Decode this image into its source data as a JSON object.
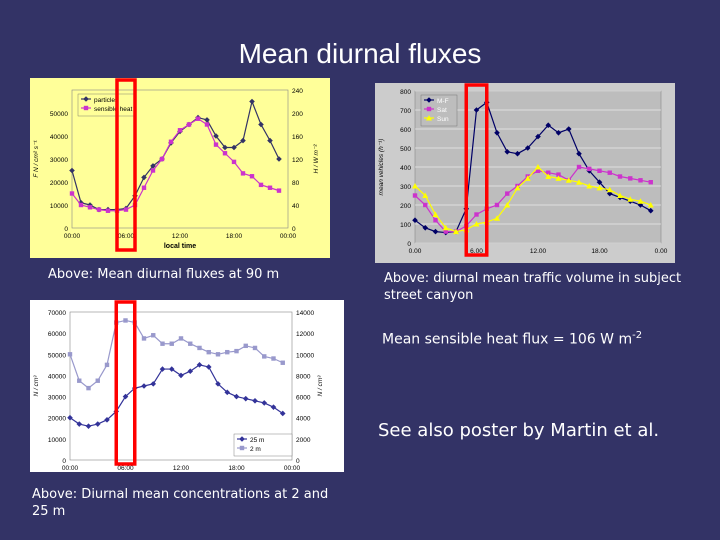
{
  "slide": {
    "title": "Mean diurnal fluxes",
    "caption_fluxes": "Above: Mean diurnal fluxes at 90 m",
    "caption_traffic": "Above: diurnal mean traffic volume in subject street canyon",
    "caption_conc": "Above: Diurnal mean concentrations at 2 and 25 m",
    "heat_flux_note": "Mean sensible heat flux = 106 W m",
    "heat_flux_exp": "-2",
    "poster_note": "See also poster by Martin et al."
  },
  "colors": {
    "background": "#333366",
    "highlight": "#ff0000"
  },
  "chart_data": [
    {
      "type": "line",
      "id": "fluxes",
      "background": "#ffff99",
      "x": [
        0,
        1,
        2,
        3,
        4,
        5,
        6,
        7,
        8,
        9,
        10,
        11,
        12,
        13,
        14,
        15,
        16,
        17,
        18,
        19,
        20,
        21,
        22,
        23
      ],
      "x_ticks": [
        "00:00",
        "06:00",
        "12:00",
        "18:00",
        "00:00"
      ],
      "x_tick_values": [
        0,
        6,
        12,
        18,
        24
      ],
      "xlabel": "local time",
      "xlim": [
        0,
        24
      ],
      "ylabel_left": "F",
      "ylabel_left_unit": "N / cm² s⁻¹",
      "ylabel_right": "H",
      "ylabel_right_unit": "/ W m⁻²",
      "ylim_left": [
        0,
        60000
      ],
      "ylim_right": [
        0,
        240
      ],
      "y_ticks_left": [
        0,
        10000,
        20000,
        30000,
        40000,
        50000
      ],
      "y_ticks_right": [
        0,
        40,
        80,
        120,
        160,
        200,
        240
      ],
      "series": [
        {
          "name": "particles",
          "axis": "left",
          "color": "#333366",
          "marker": "diamond",
          "values": [
            25000,
            11000,
            10000,
            8000,
            8000,
            8000,
            8500,
            14000,
            22000,
            27000,
            30000,
            37000,
            42000,
            45000,
            48000,
            47000,
            40000,
            35000,
            35000,
            38000,
            55000,
            45000,
            38000,
            30000
          ]
        },
        {
          "name": "sensible heat",
          "axis": "right",
          "color": "#cc33cc",
          "marker": "square",
          "values": [
            60,
            40,
            36,
            32,
            30,
            30,
            32,
            40,
            70,
            100,
            120,
            150,
            170,
            180,
            190,
            180,
            145,
            130,
            115,
            95,
            90,
            75,
            70,
            65
          ]
        }
      ],
      "legend": "top-left"
    },
    {
      "type": "line",
      "id": "traffic",
      "background": "#cccccc",
      "x": [
        0,
        1,
        2,
        3,
        4,
        5,
        6,
        7,
        8,
        9,
        10,
        11,
        12,
        13,
        14,
        15,
        16,
        17,
        18,
        19,
        20,
        21,
        22,
        23
      ],
      "x_ticks": [
        "0.00",
        "6.00",
        "12.00",
        "18.00",
        "0.00"
      ],
      "x_tick_values": [
        0,
        6,
        12,
        18,
        24
      ],
      "xlim": [
        0,
        24
      ],
      "ylabel": "mean vehicles (h⁻¹)",
      "ylim": [
        0,
        800
      ],
      "y_ticks": [
        0,
        100,
        200,
        300,
        400,
        500,
        600,
        700,
        800
      ],
      "series": [
        {
          "name": "M-F",
          "color": "#000066",
          "marker": "diamond",
          "values": [
            120,
            80,
            60,
            55,
            60,
            180,
            700,
            740,
            580,
            480,
            470,
            500,
            560,
            620,
            580,
            600,
            470,
            380,
            320,
            260,
            240,
            220,
            200,
            170
          ]
        },
        {
          "name": "Sat",
          "color": "#cc33cc",
          "marker": "square",
          "values": [
            250,
            200,
            120,
            60,
            60,
            90,
            150,
            180,
            200,
            260,
            300,
            350,
            380,
            370,
            360,
            330,
            400,
            390,
            380,
            370,
            350,
            340,
            330,
            320
          ]
        },
        {
          "name": "Sun",
          "color": "#ffff00",
          "marker": "triangle",
          "values": [
            300,
            250,
            150,
            80,
            60,
            70,
            100,
            110,
            130,
            200,
            290,
            340,
            400,
            350,
            340,
            330,
            320,
            300,
            290,
            280,
            250,
            230,
            220,
            200
          ]
        }
      ],
      "legend": "top-left"
    },
    {
      "type": "line",
      "id": "concentrations",
      "background": "#ffffff",
      "x": [
        0,
        1,
        2,
        3,
        4,
        5,
        6,
        7,
        8,
        9,
        10,
        11,
        12,
        13,
        14,
        15,
        16,
        17,
        18,
        19,
        20,
        21,
        22,
        23
      ],
      "x_ticks": [
        "00:00",
        "06:00",
        "12:00",
        "18:00",
        "00:00"
      ],
      "x_tick_values": [
        0,
        6,
        12,
        18,
        24
      ],
      "xlim": [
        0,
        24
      ],
      "ylabel_left": "N",
      "ylabel_left_unit": "/ cm³",
      "ylabel_right": "N",
      "ylabel_right_unit": "/ cm³",
      "ylim_left": [
        0,
        70000
      ],
      "ylim_right": [
        0,
        14000
      ],
      "y_ticks_left": [
        0,
        10000,
        20000,
        30000,
        40000,
        50000,
        60000,
        70000
      ],
      "y_ticks_right": [
        0,
        2000,
        4000,
        6000,
        8000,
        10000,
        12000,
        14000
      ],
      "series": [
        {
          "name": "25 m",
          "axis": "left",
          "color": "#333399",
          "marker": "diamond",
          "values": [
            20000,
            17000,
            16000,
            17000,
            19000,
            23000,
            30000,
            34000,
            35000,
            36000,
            43000,
            43000,
            40000,
            42000,
            45000,
            44000,
            36000,
            32000,
            30000,
            29000,
            28000,
            27000,
            25000,
            22000
          ]
        },
        {
          "name": "2 m",
          "axis": "right",
          "color": "#9999cc",
          "marker": "square",
          "values": [
            10000,
            7500,
            6800,
            7500,
            9000,
            13000,
            13200,
            13000,
            11500,
            11800,
            11000,
            11000,
            11500,
            11000,
            10600,
            10200,
            10000,
            10200,
            10300,
            10800,
            10600,
            9800,
            9600,
            9200
          ]
        }
      ],
      "legend": "bottom-right"
    }
  ],
  "highlight_boxes": [
    {
      "chart": "fluxes",
      "x_range": [
        5,
        7
      ]
    },
    {
      "chart": "traffic",
      "x_range": [
        5,
        7
      ]
    },
    {
      "chart": "concentrations",
      "x_range": [
        5,
        7
      ]
    }
  ]
}
